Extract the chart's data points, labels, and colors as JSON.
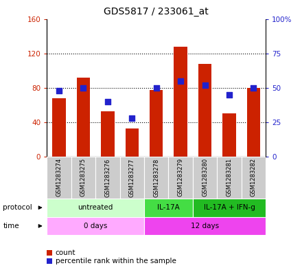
{
  "title": "GDS5817 / 233061_at",
  "samples": [
    "GSM1283274",
    "GSM1283275",
    "GSM1283276",
    "GSM1283277",
    "GSM1283278",
    "GSM1283279",
    "GSM1283280",
    "GSM1283281",
    "GSM1283282"
  ],
  "counts": [
    68,
    92,
    53,
    33,
    77,
    128,
    108,
    50,
    80
  ],
  "percentiles": [
    48,
    50,
    40,
    28,
    50,
    55,
    52,
    45,
    50
  ],
  "ylim_left": [
    0,
    160
  ],
  "ylim_right": [
    0,
    100
  ],
  "yticks_left": [
    0,
    40,
    80,
    120,
    160
  ],
  "yticks_right": [
    0,
    25,
    50,
    75,
    100
  ],
  "ytick_labels_left": [
    "0",
    "40",
    "80",
    "120",
    "160"
  ],
  "ytick_labels_right": [
    "0",
    "25",
    "50",
    "75",
    "100%"
  ],
  "bar_color": "#cc2200",
  "dot_color": "#2222cc",
  "grid_color": "black",
  "protocol_groups": [
    {
      "label": "untreated",
      "start": 0,
      "end": 4,
      "color": "#ccffcc"
    },
    {
      "label": "IL-17A",
      "start": 4,
      "end": 6,
      "color": "#44dd44"
    },
    {
      "label": "IL-17A + IFN-g",
      "start": 6,
      "end": 9,
      "color": "#22bb22"
    }
  ],
  "time_groups": [
    {
      "label": "0 days",
      "start": 0,
      "end": 4,
      "color": "#ffaaff"
    },
    {
      "label": "12 days",
      "start": 4,
      "end": 9,
      "color": "#ee44ee"
    }
  ],
  "sample_bg_color": "#cccccc",
  "legend_count_color": "#cc2200",
  "legend_percentile_color": "#2222cc",
  "bg_color": "#ffffff"
}
